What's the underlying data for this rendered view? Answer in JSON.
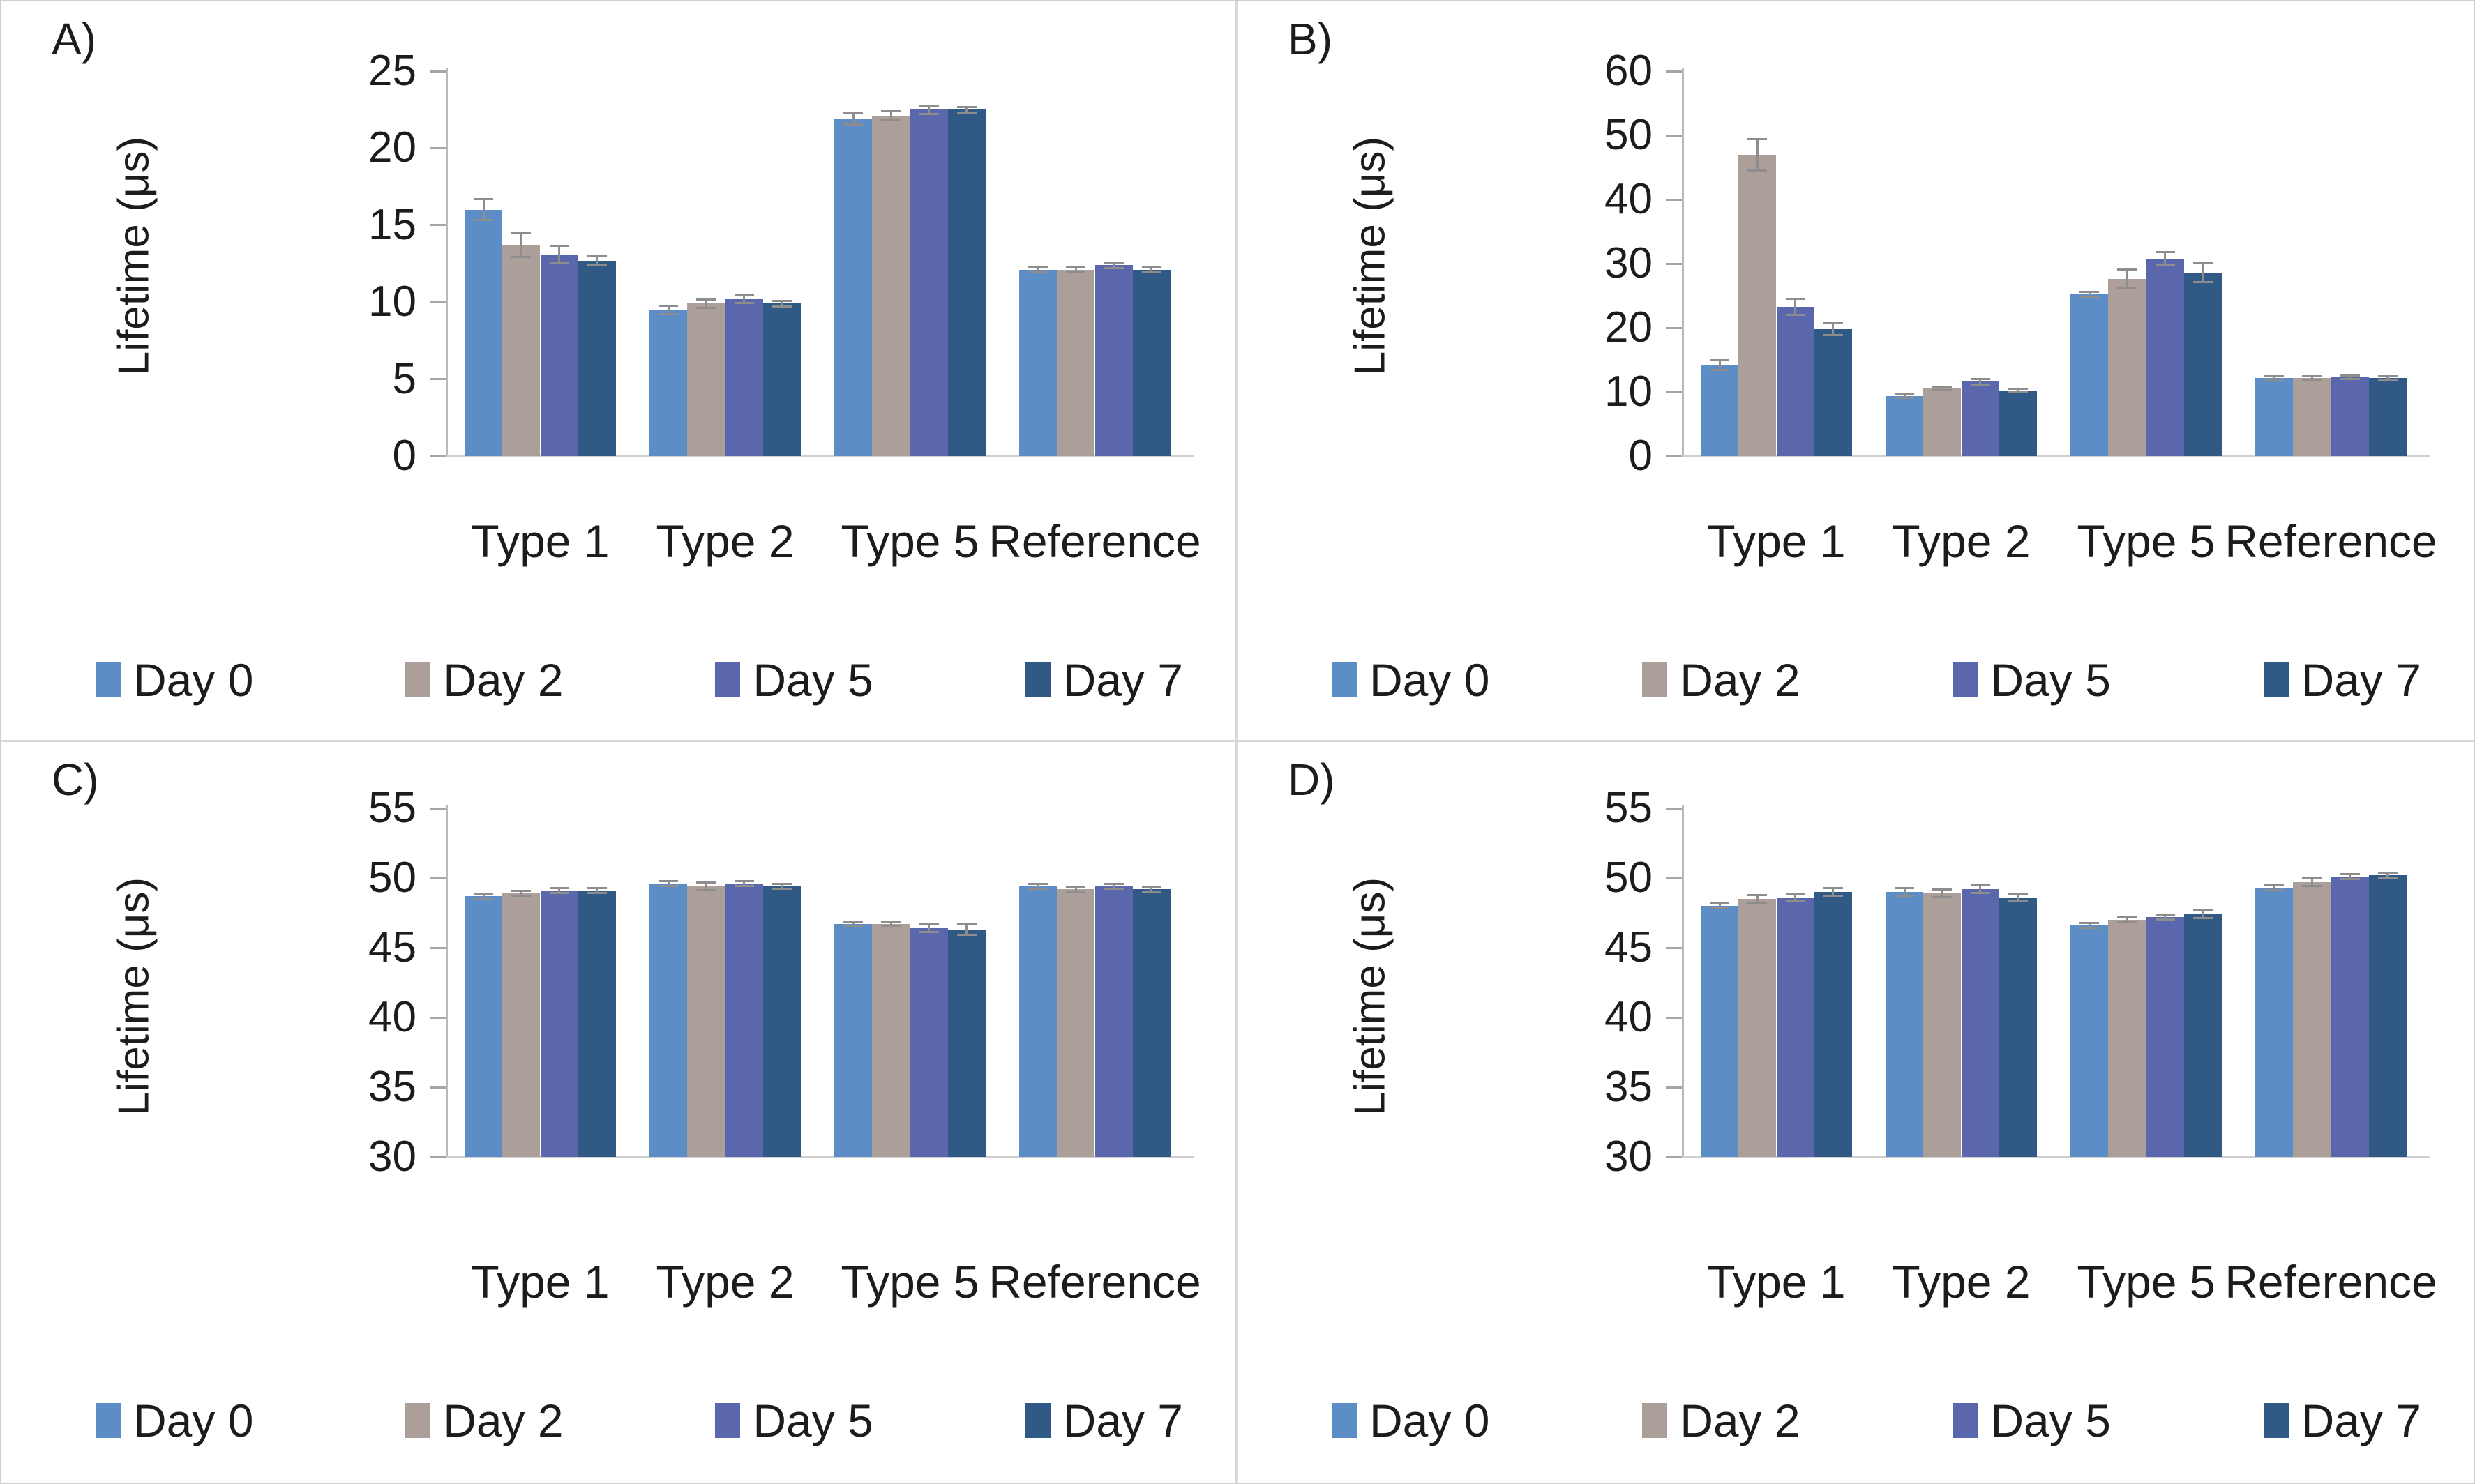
{
  "chart_data": [
    {
      "type": "bar",
      "letter": "A)",
      "ylabel": "Lifetime (μs)",
      "categories": [
        "Type 1",
        "Type 2",
        "Type 5",
        "Reference"
      ],
      "ylim": [
        0,
        25
      ],
      "ytick_step": 5,
      "grid": false,
      "legend_position": "bottom",
      "error_bars": true,
      "series": [
        {
          "name": "Day 0",
          "color": "#5C8DC6",
          "values": [
            16.0,
            9.5,
            21.9,
            12.1
          ],
          "errors": [
            0.7,
            0.3,
            0.4,
            0.2
          ]
        },
        {
          "name": "Day 2",
          "color": "#AC9F99",
          "values": [
            13.7,
            9.9,
            22.1,
            12.1
          ],
          "errors": [
            0.8,
            0.3,
            0.3,
            0.2
          ]
        },
        {
          "name": "Day 5",
          "color": "#5A67AC",
          "values": [
            13.1,
            10.2,
            22.5,
            12.4
          ],
          "errors": [
            0.6,
            0.3,
            0.3,
            0.2
          ]
        },
        {
          "name": "Day 7",
          "color": "#305A85",
          "values": [
            12.7,
            9.9,
            22.5,
            12.1
          ],
          "errors": [
            0.3,
            0.2,
            0.2,
            0.2
          ]
        }
      ]
    },
    {
      "type": "bar",
      "letter": "B)",
      "ylabel": "Lifetime (μs)",
      "categories": [
        "Type 1",
        "Type 2",
        "Type 5",
        "Reference"
      ],
      "ylim": [
        0,
        60
      ],
      "ytick_step": 10,
      "grid": false,
      "legend_position": "bottom",
      "error_bars": true,
      "series": [
        {
          "name": "Day 0",
          "color": "#5C8DC6",
          "values": [
            14.2,
            9.4,
            25.2,
            12.2
          ],
          "errors": [
            0.8,
            0.4,
            0.5,
            0.3
          ]
        },
        {
          "name": "Day 2",
          "color": "#AC9F99",
          "values": [
            47.0,
            10.5,
            27.6,
            12.2
          ],
          "errors": [
            2.5,
            0.3,
            1.5,
            0.3
          ]
        },
        {
          "name": "Day 5",
          "color": "#5A67AC",
          "values": [
            23.3,
            11.6,
            30.8,
            12.3
          ],
          "errors": [
            1.3,
            0.5,
            1.0,
            0.3
          ]
        },
        {
          "name": "Day 7",
          "color": "#305A85",
          "values": [
            19.8,
            10.2,
            28.6,
            12.2
          ],
          "errors": [
            1.0,
            0.3,
            1.5,
            0.3
          ]
        }
      ]
    },
    {
      "type": "bar",
      "letter": "C)",
      "ylabel": "Lifetime (μs)",
      "categories": [
        "Type 1",
        "Type 2",
        "Type 5",
        "Reference"
      ],
      "ylim": [
        30,
        55
      ],
      "ytick_step": 5,
      "grid": false,
      "legend_position": "bottom",
      "error_bars": true,
      "series": [
        {
          "name": "Day 0",
          "color": "#5C8DC6",
          "values": [
            48.7,
            49.6,
            46.7,
            49.4
          ],
          "errors": [
            0.2,
            0.2,
            0.2,
            0.2
          ]
        },
        {
          "name": "Day 2",
          "color": "#AC9F99",
          "values": [
            48.9,
            49.4,
            46.7,
            49.2
          ],
          "errors": [
            0.2,
            0.3,
            0.2,
            0.2
          ]
        },
        {
          "name": "Day 5",
          "color": "#5A67AC",
          "values": [
            49.1,
            49.6,
            46.4,
            49.4
          ],
          "errors": [
            0.2,
            0.2,
            0.3,
            0.2
          ]
        },
        {
          "name": "Day 7",
          "color": "#305A85",
          "values": [
            49.1,
            49.4,
            46.3,
            49.2
          ],
          "errors": [
            0.2,
            0.2,
            0.4,
            0.2
          ]
        }
      ]
    },
    {
      "type": "bar",
      "letter": "D)",
      "ylabel": "Lifetime (μs)",
      "categories": [
        "Type 1",
        "Type 2",
        "Type 5",
        "Reference"
      ],
      "ylim": [
        30,
        55
      ],
      "ytick_step": 5,
      "grid": false,
      "legend_position": "bottom",
      "error_bars": true,
      "series": [
        {
          "name": "Day 0",
          "color": "#5C8DC6",
          "values": [
            48.0,
            49.0,
            46.6,
            49.3
          ],
          "errors": [
            0.2,
            0.3,
            0.2,
            0.2
          ]
        },
        {
          "name": "Day 2",
          "color": "#AC9F99",
          "values": [
            48.5,
            48.9,
            47.0,
            49.7
          ],
          "errors": [
            0.3,
            0.3,
            0.2,
            0.3
          ]
        },
        {
          "name": "Day 5",
          "color": "#5A67AC",
          "values": [
            48.6,
            49.2,
            47.2,
            50.1
          ],
          "errors": [
            0.3,
            0.3,
            0.2,
            0.2
          ]
        },
        {
          "name": "Day 7",
          "color": "#305A85",
          "values": [
            49.0,
            48.6,
            47.4,
            50.2
          ],
          "errors": [
            0.3,
            0.3,
            0.3,
            0.2
          ]
        }
      ]
    }
  ]
}
